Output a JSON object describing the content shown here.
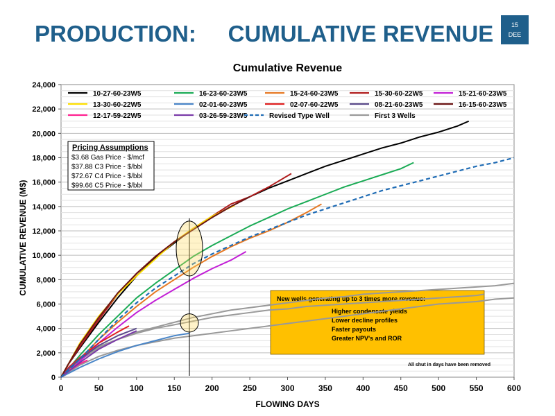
{
  "slide": {
    "title": "PRODUCTION:     CUMULATIVE REVENUE",
    "page_number": "15",
    "page_label": "DEE",
    "title_color": "#1f5f8b"
  },
  "chart_data": {
    "type": "line",
    "title": "Cumulative Revenue",
    "xlabel": "FLOWING DAYS",
    "ylabel": "CUMULATIVE REVENUE (M$)",
    "xlim": [
      0,
      600
    ],
    "ylim": [
      0,
      24000
    ],
    "x_ticks": [
      0,
      50,
      100,
      150,
      200,
      250,
      300,
      350,
      400,
      450,
      500,
      550,
      600
    ],
    "y_ticks": [
      0,
      2000,
      4000,
      6000,
      8000,
      10000,
      12000,
      14000,
      16000,
      18000,
      20000,
      22000,
      24000
    ],
    "y_tick_labels": [
      "0",
      "2,000",
      "4,000",
      "6,000",
      "8,000",
      "10,000",
      "12,000",
      "14,000",
      "16,000",
      "18,000",
      "20,000",
      "22,000",
      "24,000"
    ],
    "grid": "horizontal",
    "legend_position": "top",
    "series": [
      {
        "name": "10-27-60-23W5",
        "color": "#000000",
        "x": [
          0,
          10,
          25,
          50,
          75,
          100,
          125,
          150,
          175,
          200,
          225,
          250,
          275,
          300,
          325,
          350,
          375,
          400,
          425,
          450,
          475,
          500,
          525,
          540
        ],
        "y": [
          0,
          1100,
          2400,
          4500,
          6500,
          8300,
          9800,
          11000,
          12200,
          13100,
          14000,
          14800,
          15500,
          16100,
          16700,
          17300,
          17800,
          18300,
          18800,
          19200,
          19700,
          20100,
          20600,
          21000
        ]
      },
      {
        "name": "16-23-60-23W5",
        "color": "#1aab55",
        "x": [
          0,
          10,
          25,
          50,
          75,
          100,
          125,
          150,
          175,
          200,
          225,
          250,
          275,
          300,
          325,
          350,
          375,
          400,
          425,
          450,
          467
        ],
        "y": [
          0,
          700,
          1800,
          3500,
          5000,
          6500,
          7700,
          8800,
          9900,
          10800,
          11600,
          12400,
          13100,
          13800,
          14400,
          15000,
          15600,
          16100,
          16600,
          17100,
          17600
        ]
      },
      {
        "name": "15-24-60-23W5",
        "color": "#e67822",
        "x": [
          0,
          10,
          25,
          50,
          75,
          100,
          125,
          150,
          175,
          200,
          225,
          250,
          275,
          300,
          325,
          345
        ],
        "y": [
          0,
          600,
          1500,
          3100,
          4500,
          5800,
          7000,
          8000,
          9000,
          9900,
          10700,
          11400,
          12000,
          12700,
          13500,
          14200
        ]
      },
      {
        "name": "15-30-60-22W5",
        "color": "#b01c1c",
        "x": [
          0,
          10,
          25,
          50,
          75,
          100,
          125,
          150,
          175,
          200,
          225,
          250,
          275,
          305
        ],
        "y": [
          0,
          1100,
          2500,
          4700,
          6800,
          8500,
          9900,
          11100,
          12200,
          13200,
          14200,
          14800,
          15600,
          16700
        ]
      },
      {
        "name": "15-21-60-23W5",
        "color": "#c21fd6",
        "x": [
          0,
          10,
          25,
          50,
          75,
          100,
          125,
          150,
          175,
          200,
          225,
          245
        ],
        "y": [
          0,
          500,
          1300,
          2800,
          4100,
          5300,
          6300,
          7200,
          8100,
          8900,
          9600,
          10300
        ]
      },
      {
        "name": "13-30-60-22W5",
        "color": "#ffe000",
        "x": [
          0,
          10,
          25,
          50,
          75,
          100,
          125,
          150,
          175,
          200,
          230
        ],
        "y": [
          0,
          1100,
          2800,
          5000,
          6800,
          8300,
          9700,
          11100,
          12200,
          13200,
          14100
        ]
      },
      {
        "name": "02-01-60-23W5",
        "color": "#4a86c8",
        "x": [
          0,
          25,
          50,
          75,
          100,
          125,
          150,
          170
        ],
        "y": [
          0,
          800,
          1500,
          2100,
          2600,
          3000,
          3400,
          3600
        ]
      },
      {
        "name": "02-07-60-22W5",
        "color": "#e02020",
        "x": [
          0,
          10,
          25,
          50,
          75,
          90
        ],
        "y": [
          0,
          800,
          1600,
          2800,
          3700,
          4200
        ]
      },
      {
        "name": "08-21-60-23W5",
        "color": "#5a4a8a",
        "x": [
          0,
          10,
          25,
          50,
          75,
          100
        ],
        "y": [
          0,
          700,
          1500,
          2600,
          3400,
          4000
        ]
      },
      {
        "name": "16-15-60-23W5",
        "color": "#6b1414",
        "x": [
          0,
          10,
          25,
          50,
          75,
          100,
          125,
          150,
          175,
          200,
          225,
          250
        ],
        "y": [
          0,
          1100,
          2700,
          4900,
          6900,
          8500,
          9900,
          11100,
          12100,
          13100,
          14000,
          14800
        ]
      },
      {
        "name": "12-17-59-22W5",
        "color": "#ff2090",
        "x": [
          0,
          10,
          25,
          35
        ],
        "y": [
          0,
          500,
          1100,
          1400
        ]
      },
      {
        "name": "03-26-59-23W5",
        "color": "#7a3aa8",
        "x": [
          0,
          25,
          50,
          75,
          100
        ],
        "y": [
          0,
          1200,
          2300,
          3100,
          3800
        ]
      },
      {
        "name": "Revised Type Well",
        "color": "#1f6cb5",
        "dashed": true,
        "x": [
          0,
          25,
          50,
          75,
          100,
          125,
          150,
          175,
          200,
          225,
          250,
          275,
          300,
          325,
          350,
          375,
          400,
          425,
          450,
          475,
          500,
          525,
          550,
          575,
          600
        ],
        "y": [
          0,
          1500,
          3100,
          4700,
          6100,
          7300,
          8300,
          9300,
          10100,
          10800,
          11500,
          12100,
          12700,
          13300,
          13800,
          14300,
          14800,
          15300,
          15700,
          16100,
          16500,
          16900,
          17300,
          17600,
          18000
        ]
      }
    ],
    "grey_wells": {
      "name": "First 3 Wells",
      "color": "#999999",
      "lines": [
        {
          "x": [
            0,
            25,
            50,
            75,
            100,
            125,
            150,
            175,
            200,
            225,
            250,
            275,
            300,
            325,
            350,
            375,
            400,
            425,
            450,
            475,
            500,
            525,
            550,
            575,
            600
          ],
          "y": [
            0,
            1500,
            2500,
            3100,
            3700,
            4100,
            4500,
            4900,
            5200,
            5500,
            5700,
            5900,
            6100,
            6300,
            6500,
            6600,
            6800,
            6900,
            7000,
            7100,
            7200,
            7300,
            7400,
            7500,
            7700
          ]
        },
        {
          "x": [
            0,
            25,
            50,
            75,
            100,
            125,
            150,
            175,
            200,
            225,
            250,
            275,
            300,
            325,
            350,
            375,
            400,
            425,
            450,
            475,
            500,
            525,
            550,
            560
          ],
          "y": [
            0,
            1400,
            2400,
            3100,
            3600,
            4000,
            4300,
            4600,
            4900,
            5100,
            5300,
            5500,
            5600,
            5800,
            5900,
            6000,
            6100,
            6200,
            6300,
            6400,
            6500,
            6600,
            6700,
            6800
          ]
        },
        {
          "x": [
            0,
            25,
            50,
            75,
            100,
            125,
            150,
            175,
            200,
            225,
            250,
            275,
            300,
            325,
            350,
            375,
            400,
            425,
            450,
            475,
            500,
            525,
            550,
            575,
            600
          ],
          "y": [
            0,
            1000,
            1700,
            2200,
            2600,
            2900,
            3200,
            3400,
            3600,
            3800,
            4000,
            4200,
            4400,
            4600,
            4800,
            5000,
            5200,
            5400,
            5600,
            5800,
            6000,
            6100,
            6200,
            6400,
            6500
          ]
        }
      ]
    },
    "legend_rows": [
      [
        "10-27-60-23W5",
        "16-23-60-23W5",
        "15-24-60-23W5",
        "15-30-60-22W5",
        "15-21-60-23W5"
      ],
      [
        "13-30-60-22W5",
        "02-01-60-23W5",
        "02-07-60-22W5",
        "08-21-60-23W5",
        "16-15-60-23W5"
      ],
      [
        "12-17-59-22W5",
        "03-26-59-23W5",
        "Revised Type Well",
        "First 3 Wells"
      ]
    ],
    "pricing_box": {
      "title": "Pricing Assumptions",
      "lines": [
        "$3.68 Gas Price - $/mcf",
        "$37.88 C3 Price - $/bbl",
        "$72.67 C4 Price - $/bbl",
        "$99.66 C5 Price - $/bbl"
      ]
    },
    "callout": {
      "title": "New wells generating  up to 3 times more revenue:",
      "bullets": [
        "Higher condensate yields",
        "Lower decline profiles",
        "Faster payouts",
        "Greater NPV's and ROR"
      ],
      "color": "#ffc000"
    },
    "footnote": "All shut in days have been removed",
    "marker": {
      "x": 170,
      "ellipse_high_y": [
        8300,
        12800
      ],
      "ellipse_low_y": [
        3700,
        5200
      ]
    }
  }
}
